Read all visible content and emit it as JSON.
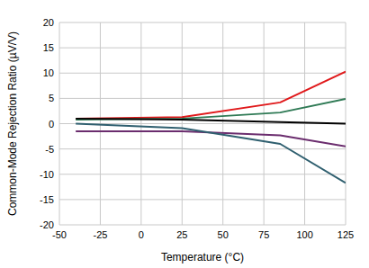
{
  "chart_data": {
    "type": "line",
    "x_label": "Temperature (°C)",
    "y_label": "Common-Mode Rejection Ratio (µV/V)",
    "x": [
      -40,
      25,
      85,
      125
    ],
    "series": [
      {
        "color": "#e0191b",
        "values": [
          1.0,
          1.3,
          4.2,
          10.3
        ]
      },
      {
        "color": "#2f7a55",
        "values": [
          0.8,
          1.0,
          2.2,
          4.9
        ]
      },
      {
        "color": "#000000",
        "values": [
          1.0,
          0.8,
          0.3,
          0.0
        ]
      },
      {
        "color": "#6b2d6e",
        "values": [
          -1.5,
          -1.5,
          -2.3,
          -4.5
        ]
      },
      {
        "color": "#2f5f6f",
        "values": [
          0.0,
          -0.9,
          -4.0,
          -11.7
        ]
      }
    ],
    "xlim": [
      -50,
      125
    ],
    "xticks": [
      -50,
      -25,
      0,
      25,
      50,
      75,
      100,
      125
    ],
    "ylim": [
      -20,
      20
    ],
    "yticks": [
      -20,
      -15,
      -10,
      -5,
      0,
      5,
      10,
      15,
      20
    ],
    "grid": true
  }
}
